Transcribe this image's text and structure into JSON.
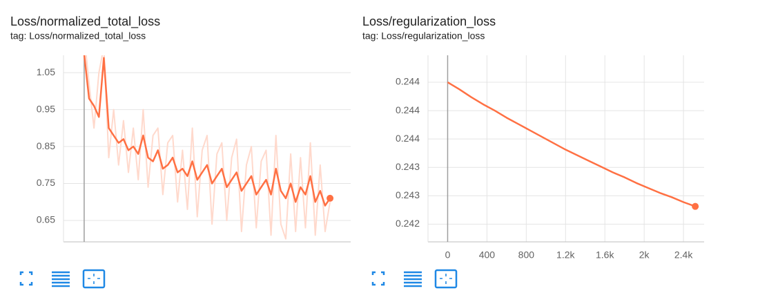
{
  "chart_data": [
    {
      "type": "line",
      "title": "Loss/normalized_total_loss",
      "subtitle": "tag: Loss/normalized_total_loss",
      "x": [
        0,
        50,
        100,
        150,
        200,
        250,
        300,
        350,
        400,
        450,
        500,
        550,
        600,
        650,
        700,
        750,
        800,
        850,
        900,
        950,
        1000,
        1050,
        1100,
        1150,
        1200,
        1250,
        1300,
        1350,
        1400,
        1450,
        1500,
        1550,
        1600,
        1650,
        1700,
        1750,
        1800,
        1850,
        1900,
        1950,
        2000,
        2050,
        2100,
        2150,
        2200,
        2250,
        2300,
        2350,
        2400,
        2450,
        2500
      ],
      "series": [
        {
          "color": "#ffd9cc",
          "values": [
            1.15,
            1.02,
            0.9,
            1.05,
            1.12,
            0.82,
            0.95,
            0.8,
            0.92,
            0.78,
            0.9,
            0.76,
            0.95,
            0.74,
            0.88,
            0.9,
            0.72,
            0.86,
            0.88,
            0.7,
            0.84,
            0.68,
            0.9,
            0.66,
            0.84,
            0.88,
            0.64,
            0.83,
            0.86,
            0.65,
            0.82,
            0.87,
            0.62,
            0.8,
            0.85,
            0.63,
            0.81,
            0.84,
            0.61,
            0.88,
            0.64,
            0.6,
            0.83,
            0.62,
            0.82,
            0.63,
            0.86,
            0.61,
            0.8,
            0.62,
            0.7
          ]
        },
        {
          "color": "#ff7043",
          "values": [
            1.1,
            0.98,
            0.96,
            0.93,
            1.09,
            0.9,
            0.88,
            0.86,
            0.87,
            0.84,
            0.85,
            0.83,
            0.88,
            0.82,
            0.81,
            0.84,
            0.79,
            0.8,
            0.82,
            0.78,
            0.79,
            0.77,
            0.81,
            0.76,
            0.78,
            0.8,
            0.75,
            0.77,
            0.79,
            0.74,
            0.76,
            0.78,
            0.73,
            0.75,
            0.77,
            0.72,
            0.74,
            0.76,
            0.72,
            0.79,
            0.73,
            0.71,
            0.75,
            0.7,
            0.74,
            0.72,
            0.77,
            0.7,
            0.73,
            0.69,
            0.71
          ]
        }
      ],
      "xlim": [
        -210,
        2710
      ],
      "ylim": [
        0.592,
        1.097
      ],
      "yticks": [
        1.05,
        0.95,
        0.85,
        0.75,
        0.65
      ],
      "grid": true
    },
    {
      "type": "line",
      "title": "Loss/regularization_loss",
      "subtitle": "tag: Loss/regularization_loss",
      "x": [
        0,
        120,
        240,
        360,
        480,
        600,
        720,
        840,
        960,
        1080,
        1200,
        1320,
        1440,
        1560,
        1680,
        1800,
        1920,
        2040,
        2160,
        2280,
        2400,
        2520
      ],
      "series": [
        {
          "color": "#ff7043",
          "values": [
            0.2444,
            0.2443,
            0.24419,
            0.24409,
            0.244,
            0.2439,
            0.24381,
            0.24372,
            0.24363,
            0.24354,
            0.24345,
            0.24337,
            0.24329,
            0.24321,
            0.24313,
            0.24306,
            0.24298,
            0.24291,
            0.24284,
            0.24278,
            0.24271,
            0.24265
          ]
        }
      ],
      "xlim": [
        -200,
        2610
      ],
      "ylim": [
        0.24215,
        0.24478
      ],
      "yticks": [
        {
          "value": 0.2444,
          "label": "0.244"
        },
        {
          "value": 0.244,
          "label": "0.244"
        },
        {
          "value": 0.2436,
          "label": "0.244"
        },
        {
          "value": 0.2432,
          "label": "0.243"
        },
        {
          "value": 0.2428,
          "label": "0.243"
        },
        {
          "value": 0.2424,
          "label": "0.242"
        }
      ],
      "xticks": [
        0,
        400,
        800,
        {
          "value": 1200,
          "label": "1.2k"
        },
        {
          "value": 1600,
          "label": "1.6k"
        },
        {
          "value": 2000,
          "label": "2k"
        },
        {
          "value": 2400,
          "label": "2.4k"
        }
      ],
      "grid": true
    }
  ]
}
